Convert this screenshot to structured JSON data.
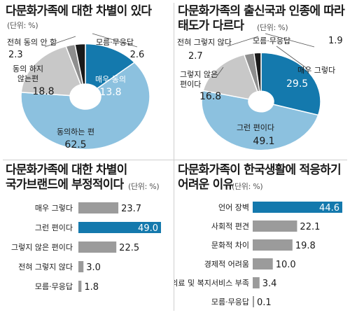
{
  "colors": {
    "dark_blue": "#1479ad",
    "light_blue": "#8cc1df",
    "light_gray": "#c8c8c8",
    "mid_gray": "#8e8e8e",
    "black": "#1a1a1a",
    "bar_gray": "#9b9b9b"
  },
  "chart_data": [
    {
      "type": "pie",
      "title": "다문화가족에 대한 차별이 있다",
      "unit": "(단위: %)",
      "slices": [
        {
          "label": "매우 동의",
          "value": 13.8,
          "color": "#1479ad",
          "text_color": "#ffffff"
        },
        {
          "label": "동의하는 편",
          "value": 62.5,
          "color": "#8cc1df",
          "text_color": "#1a1a1a"
        },
        {
          "label": "동의 하지\n않는편",
          "value": 18.8,
          "color": "#c8c8c8",
          "text_color": "#1a1a1a"
        },
        {
          "label": "전혀 동의 안 함",
          "value": 2.3,
          "color": "#8e8e8e",
          "text_color": "#1a1a1a"
        },
        {
          "label": "모름·무응답",
          "value": 2.6,
          "color": "#1a1a1a",
          "text_color": "#1a1a1a"
        }
      ]
    },
    {
      "type": "pie",
      "title": "다문화가족의 출신국과 인종에 따라\n태도가 다르다",
      "unit": "(단위: %)",
      "slices": [
        {
          "label": "매우 그렇다",
          "value": 29.5,
          "color": "#1479ad",
          "text_color": "#ffffff"
        },
        {
          "label": "그런 편이다",
          "value": 49.1,
          "color": "#8cc1df",
          "text_color": "#1a1a1a"
        },
        {
          "label": "그렇지 않은\n편이다",
          "value": 16.8,
          "color": "#c8c8c8",
          "text_color": "#1a1a1a"
        },
        {
          "label": "전혀 그렇지 않다",
          "value": 2.7,
          "color": "#8e8e8e",
          "text_color": "#1a1a1a"
        },
        {
          "label": "모름·무응답",
          "value": 1.9,
          "color": "#1a1a1a",
          "text_color": "#1a1a1a"
        }
      ]
    },
    {
      "type": "bar",
      "orientation": "horizontal",
      "title": "다문화가족에 대한 차별이\n국가브랜드에 부정적이다",
      "unit": "(단위: %)",
      "categories": [
        "매우 그렇다",
        "그런 편이다",
        "그렇지 않은 편이다",
        "전혀 그렇지 않다",
        "모름·무응답"
      ],
      "values": [
        23.7,
        49.0,
        22.5,
        3.0,
        1.8
      ],
      "highlight_index": 1
    },
    {
      "type": "bar",
      "orientation": "horizontal",
      "title": "다문화가족이 한국생활에 적응하기\n어려운 이유",
      "unit": "(단위: %)",
      "categories": [
        "언어 장벽",
        "사회적 편견",
        "문화적 차이",
        "경제적 어려움",
        "의료 및 복지서비스 부족",
        "모름·무응답"
      ],
      "values": [
        44.6,
        22.1,
        19.8,
        10.0,
        3.4,
        0.1
      ],
      "highlight_index": 0
    }
  ]
}
